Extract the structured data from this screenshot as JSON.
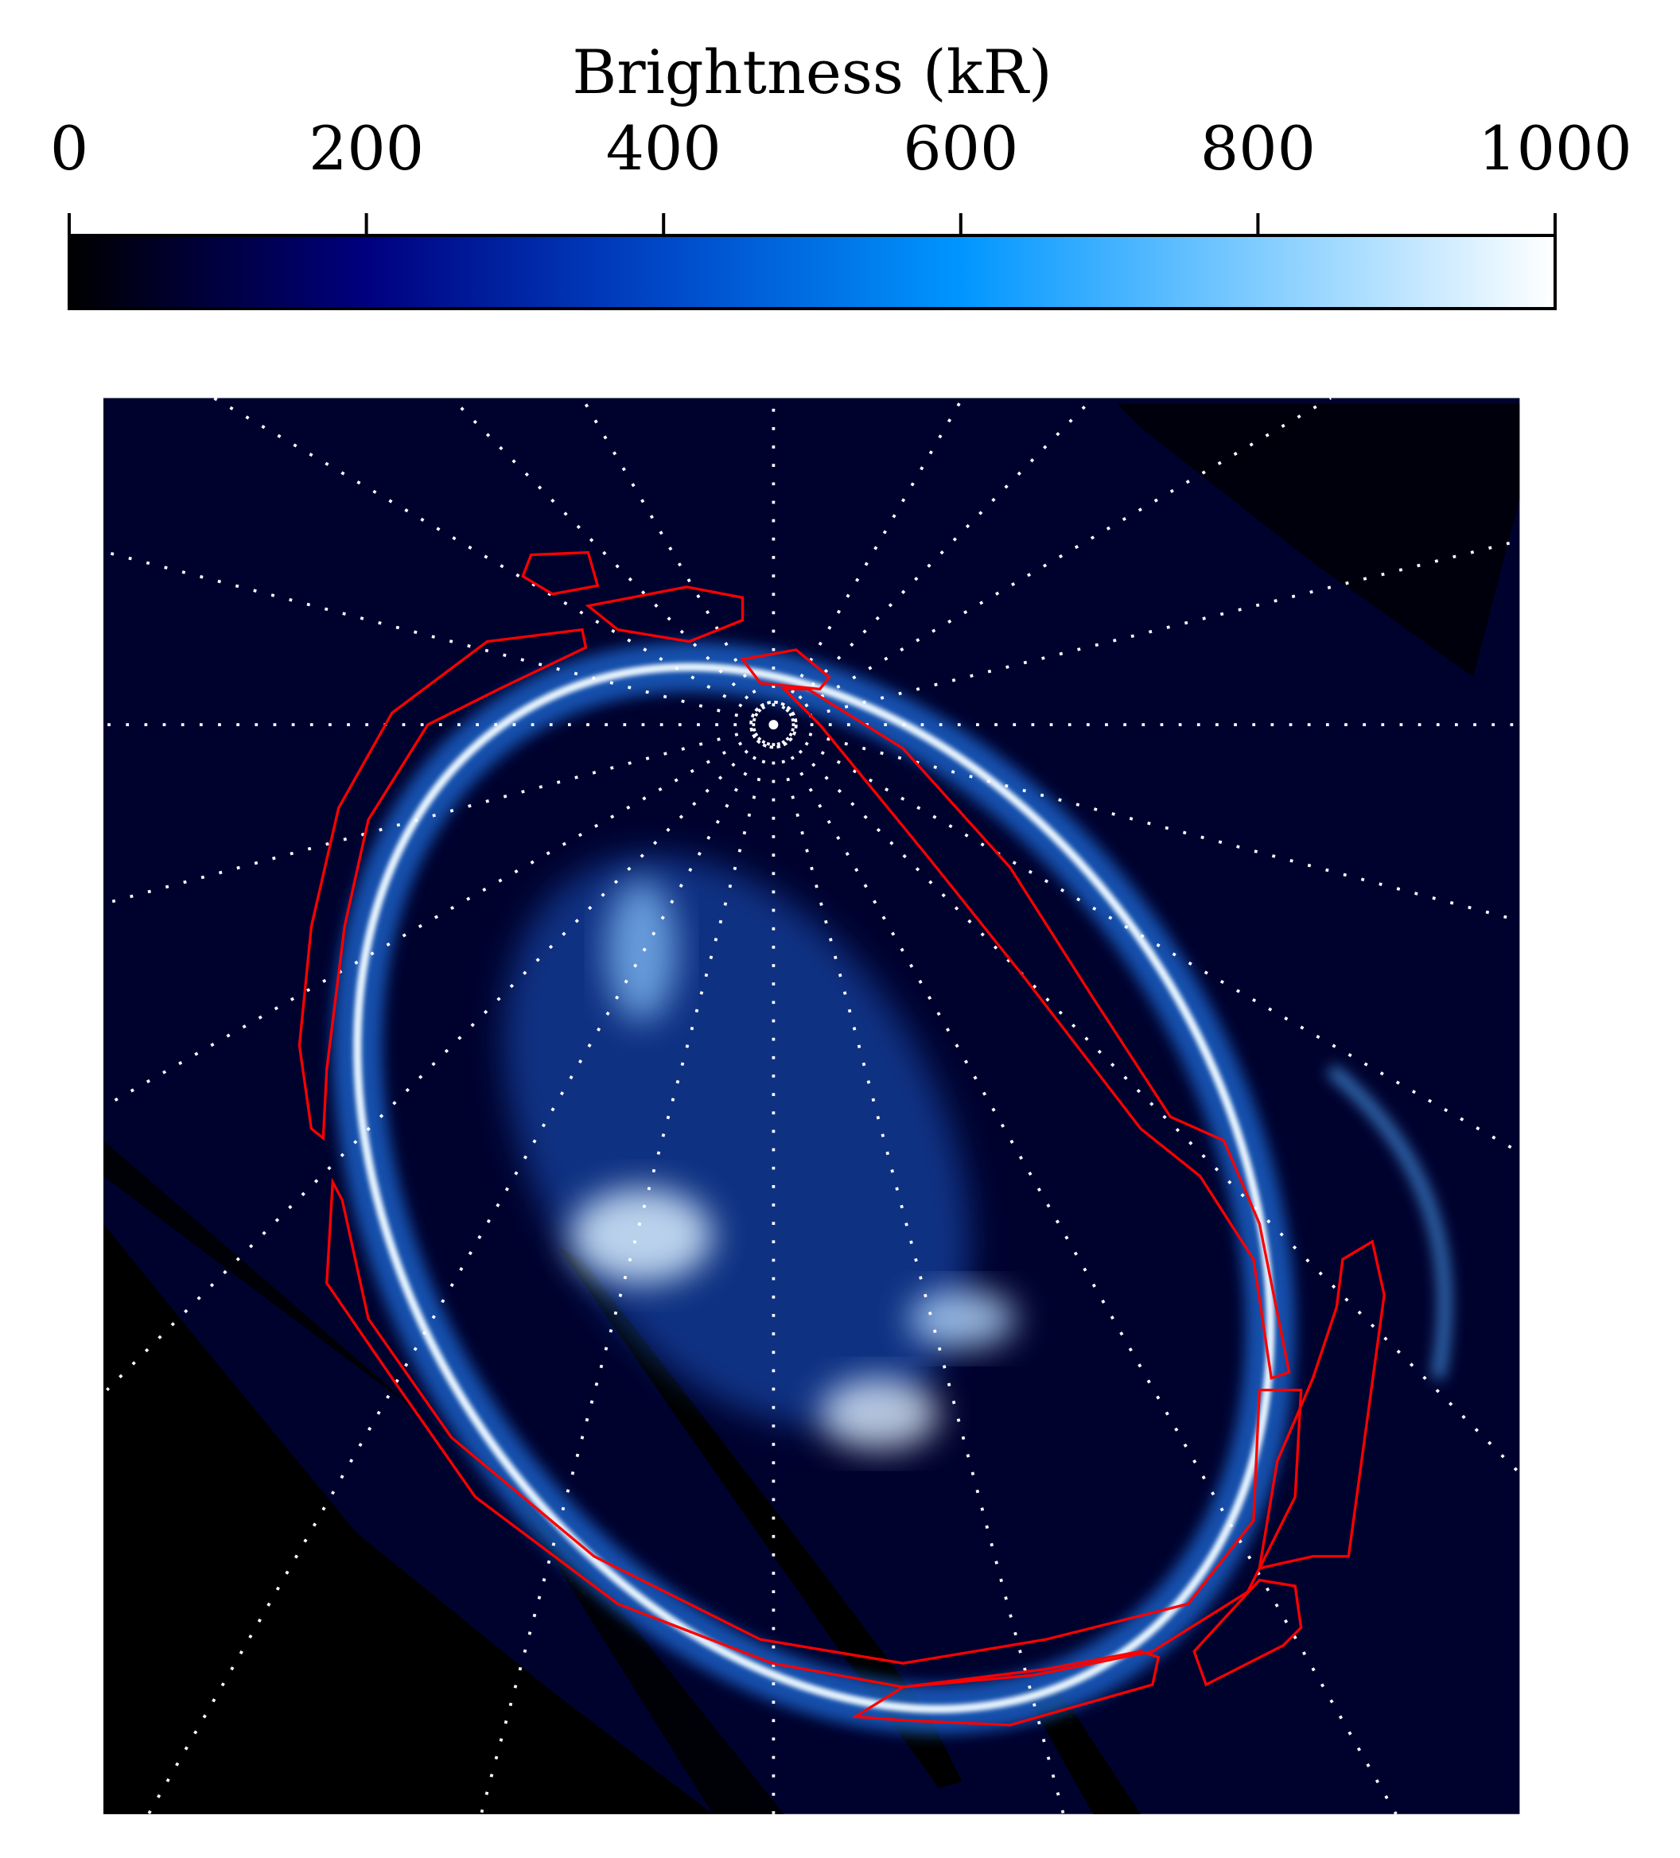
{
  "chart_data": {
    "type": "image",
    "colorbar": {
      "label": "Brightness (kR)",
      "lim": [
        0,
        1000
      ],
      "ticks": [
        0,
        200,
        400,
        600,
        800,
        1000
      ],
      "colormap": [
        "#000000",
        "#00007f",
        "#0048c8",
        "#0096ff",
        "#80ccff",
        "#ffffff"
      ]
    }
  }
}
